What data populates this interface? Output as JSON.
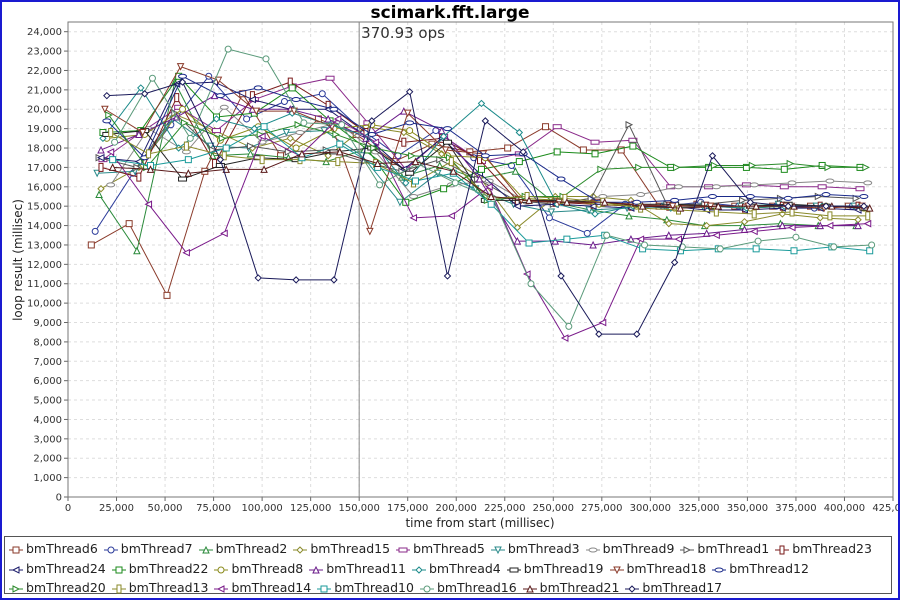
{
  "chart_data": {
    "type": "line",
    "title": "scimark.fft.large",
    "annotation": "370.93 ops",
    "annotation_x": 150000,
    "xlabel": "time from start (millisec)",
    "ylabel": "loop result (millisec)",
    "xlim": [
      0,
      425000
    ],
    "ylim": [
      0,
      24500
    ],
    "grid": true,
    "legend_position": "bottom",
    "x_ticks": [
      0,
      25000,
      50000,
      75000,
      100000,
      125000,
      150000,
      175000,
      200000,
      225000,
      250000,
      275000,
      300000,
      325000,
      350000,
      375000,
      400000,
      425000
    ],
    "x_tick_labels": [
      "0",
      "25,000",
      "50,000",
      "75,000",
      "100,000",
      "125,000",
      "150,000",
      "175,000",
      "200,000",
      "225,000",
      "250,000",
      "275,000",
      "300,000",
      "325,000",
      "350,000",
      "375,000",
      "400,000",
      "425,000"
    ],
    "y_ticks": [
      0,
      1000,
      2000,
      3000,
      4000,
      5000,
      6000,
      7000,
      8000,
      9000,
      10000,
      11000,
      12000,
      13000,
      14000,
      15000,
      16000,
      17000,
      18000,
      19000,
      20000,
      21000,
      22000,
      23000,
      24000
    ],
    "y_tick_labels": [
      "0",
      "1,000",
      "2,000",
      "3,000",
      "4,000",
      "5,000",
      "6,000",
      "7,000",
      "8,000",
      "9,000",
      "10,000",
      "11,000",
      "12,000",
      "13,000",
      "14,000",
      "15,000",
      "16,000",
      "17,000",
      "18,000",
      "19,000",
      "20,000",
      "21,000",
      "22,000",
      "23,000",
      "24,000"
    ],
    "series": [
      {
        "name": "bmThread6",
        "color": "#8a3a2a",
        "shape": "square",
        "x_start": 12000,
        "x_step": 19500,
        "values": [
          13000,
          14100,
          10400,
          16800,
          20800,
          17600,
          19500,
          18700,
          17300,
          18200,
          17800,
          18000,
          19100,
          17900,
          17900,
          15000,
          15100,
          15000,
          15000,
          15000,
          15000
        ]
      },
      {
        "name": "bmThread7",
        "color": "#2a3a9a",
        "shape": "circle",
        "x_start": 14000,
        "x_step": 19500,
        "values": [
          13700,
          16700,
          19200,
          21700,
          19500,
          20400,
          20800,
          19000,
          17600,
          18900,
          17500,
          17100,
          14400,
          13600,
          15100,
          15000,
          15200,
          15000,
          15000,
          14900,
          15000
        ]
      },
      {
        "name": "bmThread2",
        "color": "#2a8a3a",
        "shape": "triangle",
        "x_start": 16000,
        "x_step": 19500,
        "values": [
          15600,
          12700,
          21400,
          17600,
          17700,
          17500,
          17300,
          17900,
          16500,
          17100,
          16400,
          16800,
          15200,
          14800,
          14500,
          14300,
          14000,
          14000,
          14100,
          14000,
          14000
        ]
      },
      {
        "name": "bmThread15",
        "color": "#8a8a2a",
        "shape": "diamond",
        "x_start": 17000,
        "x_step": 19500,
        "values": [
          15900,
          17000,
          19700,
          18900,
          18000,
          18500,
          17600,
          19100,
          18800,
          17700,
          16500,
          13900,
          15500,
          15500,
          15300,
          14100,
          14000,
          14200,
          14600,
          14400,
          14300
        ]
      },
      {
        "name": "bmThread5",
        "color": "#8a2a8a",
        "shape": "hrect",
        "x_start": 18000,
        "x_step": 19500,
        "values": [
          17400,
          18800,
          20100,
          18900,
          20500,
          21200,
          21600,
          19300,
          16900,
          18600,
          17300,
          17700,
          19100,
          18300,
          18400,
          16000,
          16000,
          16100,
          16000,
          16000,
          15900
        ]
      },
      {
        "name": "bmThread3",
        "color": "#2a8a8a",
        "shape": "dtriangle",
        "x_start": 15000,
        "x_step": 19500,
        "values": [
          16700,
          16800,
          19500,
          18100,
          18000,
          18800,
          18900,
          17600,
          15200,
          16700,
          15900,
          15100,
          14700,
          14800,
          14900,
          15000,
          15000,
          15000,
          15100,
          15000,
          15000
        ]
      },
      {
        "name": "bmThread9",
        "color": "#888888",
        "shape": "ellipse",
        "x_start": 22000,
        "x_step": 19500,
        "values": [
          16100,
          19000,
          17800,
          20100,
          18300,
          18800,
          19300,
          17800,
          15500,
          16100,
          16300,
          15200,
          15200,
          15500,
          15600,
          16000,
          16000,
          16100,
          16200,
          16300,
          16200
        ]
      },
      {
        "name": "bmThread1",
        "color": "#555555",
        "shape": "rtriangle",
        "x_start": 16000,
        "x_step": 19500,
        "values": [
          17500,
          17000,
          19800,
          17900,
          18100,
          17800,
          17900,
          17300,
          16800,
          17400,
          16400,
          15300,
          15100,
          15400,
          19200,
          15100,
          15100,
          15300,
          15400,
          15500,
          15400
        ]
      },
      {
        "name": "bmThread23",
        "color": "#7a1a1a",
        "shape": "vrect",
        "x_start": 17000,
        "x_step": 19500,
        "values": [
          17000,
          16500,
          20600,
          17200,
          20700,
          21400,
          20200,
          18800,
          18300,
          18500,
          17400,
          15300,
          15200,
          15100,
          15000,
          15000,
          15000,
          14900,
          15000,
          15000,
          15000
        ]
      },
      {
        "name": "bmThread24",
        "color": "#1a1a6a",
        "shape": "ltriangle",
        "x_start": 17000,
        "x_step": 19500,
        "values": [
          17500,
          17300,
          21300,
          21400,
          20500,
          20000,
          20000,
          18600,
          16900,
          18500,
          16700,
          15000,
          15100,
          15000,
          14900,
          15000,
          14800,
          14800,
          14900,
          14900,
          14800
        ]
      },
      {
        "name": "bmThread22",
        "color": "#1a8a1a",
        "shape": "square",
        "x_start": 18000,
        "x_step": 19500,
        "values": [
          18800,
          18900,
          21700,
          19600,
          19800,
          21100,
          19400,
          17900,
          15200,
          15900,
          16900,
          17300,
          17800,
          17700,
          18100,
          17000,
          17000,
          17000,
          16900,
          17100,
          17000
        ]
      },
      {
        "name": "bmThread8",
        "color": "#8a8a1a",
        "shape": "circle",
        "x_start": 20000,
        "x_step": 19500,
        "values": [
          18500,
          18700,
          20000,
          18400,
          19100,
          18000,
          19000,
          19200,
          18900,
          17600,
          17500,
          15400,
          15300,
          15100,
          15000,
          14900,
          15000,
          14900,
          15000,
          15000,
          14900
        ]
      },
      {
        "name": "bmThread11",
        "color": "#6a1a8a",
        "shape": "triangle",
        "x_start": 17000,
        "x_step": 19500,
        "values": [
          17900,
          18700,
          19600,
          20700,
          20000,
          20000,
          19500,
          18500,
          19900,
          18900,
          16400,
          13200,
          13200,
          13000,
          13300,
          13500,
          13600,
          13800,
          14000,
          14000,
          14000
        ]
      },
      {
        "name": "bmThread4",
        "color": "#1a8a8a",
        "shape": "diamond",
        "x_start": 18000,
        "x_step": 19500,
        "values": [
          18500,
          21100,
          18000,
          19500,
          19000,
          19800,
          19200,
          18600,
          16200,
          18600,
          20300,
          18800,
          15100,
          14600,
          15000,
          14900,
          15000,
          14900,
          15000,
          15000,
          15000
        ]
      },
      {
        "name": "bmThread19",
        "color": "#222222",
        "shape": "hrect",
        "x_start": 20000,
        "x_step": 19500,
        "values": [
          18700,
          18900,
          16400,
          17100,
          17500,
          17400,
          17800,
          18000,
          16700,
          18300,
          15300,
          15300,
          15300,
          15200,
          15100,
          15100,
          15000,
          15000,
          15100,
          15000,
          14900
        ]
      },
      {
        "name": "bmThread18",
        "color": "#8a3a2a",
        "shape": "dtriangle",
        "x_start": 19000,
        "x_step": 19500,
        "values": [
          20000,
          18800,
          22200,
          21500,
          19900,
          19900,
          19100,
          13700,
          19800,
          17900,
          17700,
          15300,
          15200,
          15200,
          15100,
          15000,
          15000,
          15000,
          15000,
          14900,
          15000
        ]
      },
      {
        "name": "bmThread12",
        "color": "#1a2a8a",
        "shape": "ellipse",
        "x_start": 20000,
        "x_step": 19500,
        "values": [
          19400,
          17500,
          21700,
          20700,
          21100,
          20500,
          20000,
          18700,
          19300,
          19000,
          17600,
          17700,
          16400,
          15200,
          15200,
          15300,
          15500,
          15500,
          15400,
          15600,
          15500
        ]
      },
      {
        "name": "bmThread20",
        "color": "#2a8a2a",
        "shape": "rtriangle",
        "x_start": 21000,
        "x_step": 19500,
        "values": [
          19700,
          17000,
          19300,
          18500,
          18700,
          19200,
          18700,
          18000,
          17600,
          17500,
          15300,
          15500,
          15500,
          16900,
          17000,
          17000,
          17100,
          17100,
          17200,
          17000,
          17000
        ]
      },
      {
        "name": "bmThread13",
        "color": "#8a8a2a",
        "shape": "vrect",
        "x_start": 22000,
        "x_step": 19500,
        "values": [
          18800,
          17700,
          18100,
          17600,
          17400,
          17400,
          17300,
          17200,
          16200,
          17300,
          15400,
          15500,
          15400,
          15200,
          14900,
          14800,
          14700,
          14600,
          14700,
          14500,
          14500
        ]
      },
      {
        "name": "bmThread14",
        "color": "#7a1a8a",
        "shape": "ltriangle",
        "x_start": 22000,
        "x_step": 19500,
        "values": [
          17800,
          15100,
          12600,
          13600,
          18600,
          17600,
          19500,
          18300,
          14400,
          14500,
          16000,
          11500,
          8200,
          9000,
          13300,
          13300,
          13500,
          13700,
          13900,
          14000,
          14100
        ]
      },
      {
        "name": "bmThread10",
        "color": "#1a9a9a",
        "shape": "square",
        "x_start": 23000,
        "x_step": 19500,
        "values": [
          17400,
          17100,
          17400,
          18000,
          19100,
          17500,
          18200,
          17000,
          16300,
          16700,
          15100,
          13100,
          13300,
          13500,
          12800,
          12700,
          12800,
          12800,
          12700,
          12900,
          12700
        ]
      },
      {
        "name": "bmThread16",
        "color": "#5a9a7a",
        "shape": "circle",
        "x_start": 24000,
        "x_step": 19500,
        "values": [
          18300,
          21600,
          18500,
          23100,
          22600,
          19300,
          19200,
          16100,
          17200,
          16200,
          15400,
          11000,
          8800,
          13500,
          13000,
          12900,
          12800,
          13200,
          13400,
          12900,
          13000
        ]
      },
      {
        "name": "bmThread21",
        "color": "#5a1a1a",
        "shape": "triangle",
        "x_start": 23000,
        "x_step": 19500,
        "values": [
          17000,
          16900,
          16700,
          16900,
          16900,
          17700,
          17800,
          17200,
          17300,
          16800,
          15500,
          15300,
          15200,
          15200,
          15000,
          14900,
          15000,
          15000,
          15000,
          15000,
          14900
        ]
      },
      {
        "name": "bmThread17",
        "color": "#1a1a5a",
        "shape": "diamond",
        "x_start": 20000,
        "x_step": 19500,
        "values": [
          20700,
          20800,
          21400,
          17400,
          11300,
          11200,
          11200,
          19400,
          20900,
          11400,
          19400,
          17800,
          11400,
          8400,
          8400,
          12100,
          17600,
          15200,
          15000,
          15000,
          15000
        ]
      }
    ]
  }
}
